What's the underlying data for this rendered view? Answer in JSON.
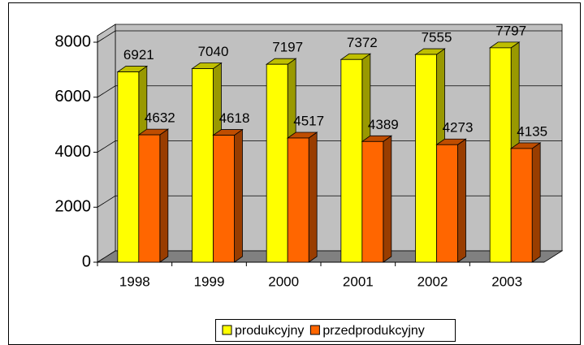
{
  "chart_data": {
    "type": "bar3d",
    "categories": [
      "1998",
      "1999",
      "2000",
      "2001",
      "2002",
      "2003"
    ],
    "series": [
      {
        "name": "produkcyjny",
        "color": "#ffff00",
        "values": [
          6921,
          7040,
          7197,
          7372,
          7555,
          7797
        ]
      },
      {
        "name": "przedprodukcyjny",
        "color": "#ff6600",
        "values": [
          4632,
          4618,
          4517,
          4389,
          4273,
          4135
        ]
      }
    ],
    "ylim": [
      0,
      8000
    ],
    "yticks": [
      0,
      2000,
      4000,
      6000,
      8000
    ],
    "grid": true,
    "legend": "bottom"
  }
}
